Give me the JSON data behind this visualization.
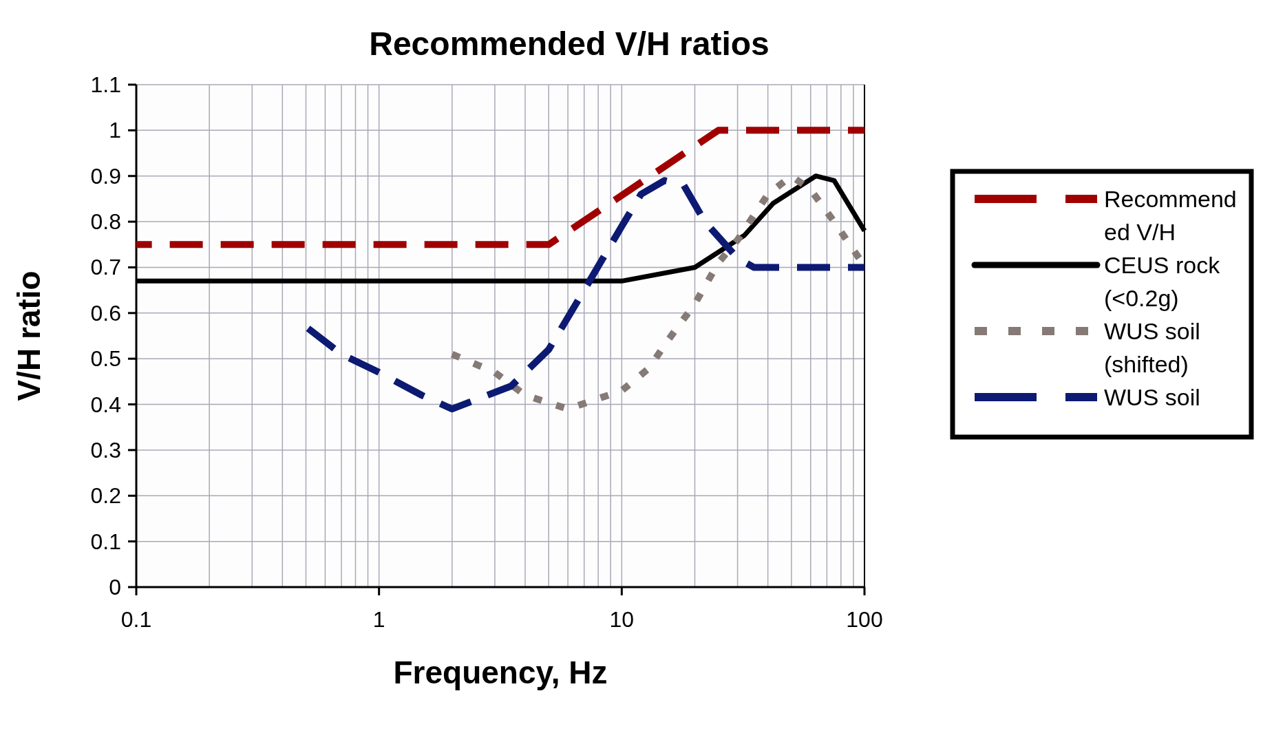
{
  "chart_data": {
    "type": "line",
    "title": "Recommended V/H ratios",
    "xlabel": "Frequency, Hz",
    "ylabel": "V/H ratio",
    "log": "x",
    "grid": true,
    "legend": "right",
    "xlim": [
      0.1,
      100
    ],
    "ylim": [
      0,
      1.1
    ],
    "xticks": [
      0.1,
      {
        "value": 0.2,
        "label": null
      },
      {
        "value": 0.3,
        "label": null
      },
      {
        "value": 0.4,
        "label": null
      },
      {
        "value": 0.5,
        "label": null
      },
      {
        "value": 0.6,
        "label": null
      },
      {
        "value": 0.7,
        "label": null
      },
      {
        "value": 0.8,
        "label": null
      },
      {
        "value": 0.9,
        "label": null
      },
      1,
      {
        "value": 2,
        "label": null
      },
      {
        "value": 3,
        "label": null
      },
      {
        "value": 4,
        "label": null
      },
      {
        "value": 5,
        "label": null
      },
      {
        "value": 6,
        "label": null
      },
      {
        "value": 7,
        "label": null
      },
      {
        "value": 8,
        "label": null
      },
      {
        "value": 9,
        "label": null
      },
      10,
      {
        "value": 20,
        "label": null
      },
      {
        "value": 30,
        "label": null
      },
      {
        "value": 40,
        "label": null
      },
      {
        "value": 50,
        "label": null
      },
      {
        "value": 60,
        "label": null
      },
      {
        "value": 70,
        "label": null
      },
      {
        "value": 80,
        "label": null
      },
      {
        "value": 90,
        "label": null
      },
      100
    ],
    "yticks": [
      0,
      0.1,
      0.2,
      0.3,
      0.4,
      0.5,
      0.6,
      0.7,
      0.8,
      0.9,
      1,
      1.1
    ],
    "series": [
      {
        "name": "Recommended V/H",
        "color": "#a00000",
        "line_style": "dashed",
        "x": [
          0.1,
          5,
          25,
          100
        ],
        "values": [
          0.75,
          0.75,
          1.0,
          1.0
        ]
      },
      {
        "name": "CEUS rock (<0.2g)",
        "color": "#000000",
        "line_style": "solid",
        "x": [
          0.1,
          10,
          20,
          32,
          42,
          63,
          75,
          100
        ],
        "values": [
          0.67,
          0.67,
          0.7,
          0.77,
          0.84,
          0.9,
          0.89,
          0.78
        ]
      },
      {
        "name": "WUS soil (shifted)",
        "color": "#857a76",
        "line_style": "dotted",
        "x": [
          2,
          3,
          4,
          6,
          10,
          13,
          15,
          20,
          25,
          30,
          40,
          50,
          60,
          75,
          95
        ],
        "values": [
          0.51,
          0.47,
          0.42,
          0.39,
          0.43,
          0.48,
          0.53,
          0.62,
          0.71,
          0.76,
          0.86,
          0.9,
          0.87,
          0.8,
          0.72
        ]
      },
      {
        "name": "WUS soil",
        "color": "#0d1a73",
        "line_style": "dashed",
        "x": [
          0.5,
          0.7,
          1,
          1.5,
          2,
          2.5,
          3.5,
          5,
          7,
          10,
          12,
          15,
          18,
          22,
          30,
          35,
          100
        ],
        "values": [
          0.57,
          0.51,
          0.47,
          0.42,
          0.39,
          0.41,
          0.44,
          0.52,
          0.65,
          0.79,
          0.86,
          0.89,
          0.88,
          0.8,
          0.72,
          0.7,
          0.7
        ]
      }
    ]
  }
}
